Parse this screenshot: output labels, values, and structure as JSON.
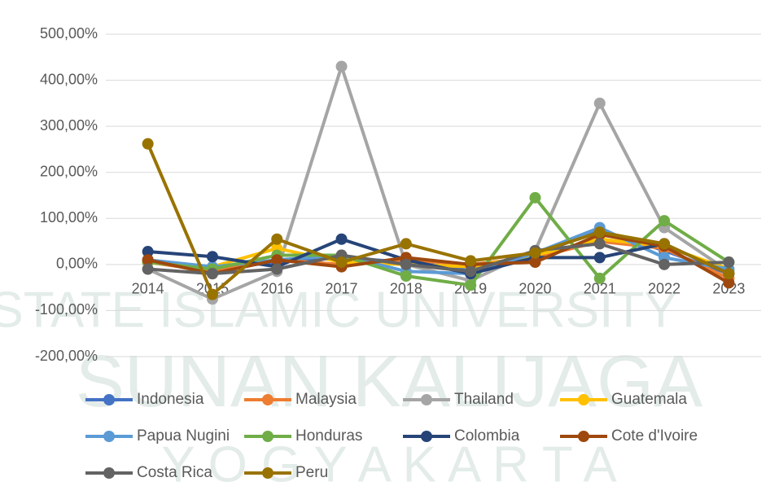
{
  "chart_data": {
    "type": "line",
    "watermark": [
      "STATE ISLAMIC UNIVERSITY",
      "SUNAN KALIJAGA",
      "Y O G Y A K A R T A"
    ],
    "categories": [
      "2014",
      "2015",
      "2016",
      "2017",
      "2018",
      "2019",
      "2020",
      "2021",
      "2022",
      "2023"
    ],
    "ylim": [
      -200,
      500
    ],
    "yticks": [
      {
        "value": -200,
        "label": "-200,00%"
      },
      {
        "value": -100,
        "label": "-100,00%"
      },
      {
        "value": 0,
        "label": "0,00%"
      },
      {
        "value": 100,
        "label": "100,00%"
      },
      {
        "value": 200,
        "label": "200,00%"
      },
      {
        "value": 300,
        "label": "300,00%"
      },
      {
        "value": 400,
        "label": "400,00%"
      },
      {
        "value": 500,
        "label": "500,00%"
      }
    ],
    "grid": true,
    "legend": "bottom",
    "series": [
      {
        "name": "Indonesia",
        "color": "#4472c4",
        "values": [
          10,
          -10,
          5,
          15,
          5,
          -10,
          20,
          75,
          30,
          -20
        ]
      },
      {
        "name": "Malaysia",
        "color": "#ed7d31",
        "values": [
          5,
          -15,
          10,
          0,
          10,
          0,
          15,
          50,
          35,
          -30
        ]
      },
      {
        "name": "Thailand",
        "color": "#a5a5a5",
        "values": [
          -10,
          -75,
          -15,
          430,
          0,
          -35,
          30,
          350,
          80,
          -15
        ]
      },
      {
        "name": "Guatemala",
        "color": "#ffc000",
        "values": [
          5,
          -5,
          35,
          5,
          0,
          -5,
          20,
          55,
          40,
          -10
        ]
      },
      {
        "name": "Papua Nugini",
        "color": "#5b9bd5",
        "values": [
          10,
          -5,
          10,
          20,
          -15,
          -20,
          25,
          80,
          15,
          -10
        ]
      },
      {
        "name": "Honduras",
        "color": "#70ad47",
        "values": [
          5,
          -10,
          20,
          20,
          -25,
          -45,
          145,
          -30,
          95,
          5
        ]
      },
      {
        "name": "Colombia",
        "color": "#264478",
        "values": [
          28,
          17,
          -5,
          55,
          10,
          -20,
          15,
          15,
          45,
          -20
        ]
      },
      {
        "name": "Cote d'Ivoire",
        "color": "#9e480e",
        "values": [
          10,
          -20,
          10,
          -5,
          15,
          0,
          5,
          65,
          40,
          -40
        ]
      },
      {
        "name": "Costa Rica",
        "color": "#636363",
        "values": [
          -10,
          -20,
          -10,
          20,
          0,
          -15,
          30,
          45,
          0,
          5
        ]
      },
      {
        "name": "Peru",
        "color": "#997300",
        "values": [
          262,
          -65,
          55,
          5,
          45,
          8,
          25,
          70,
          45,
          -20
        ]
      }
    ]
  }
}
